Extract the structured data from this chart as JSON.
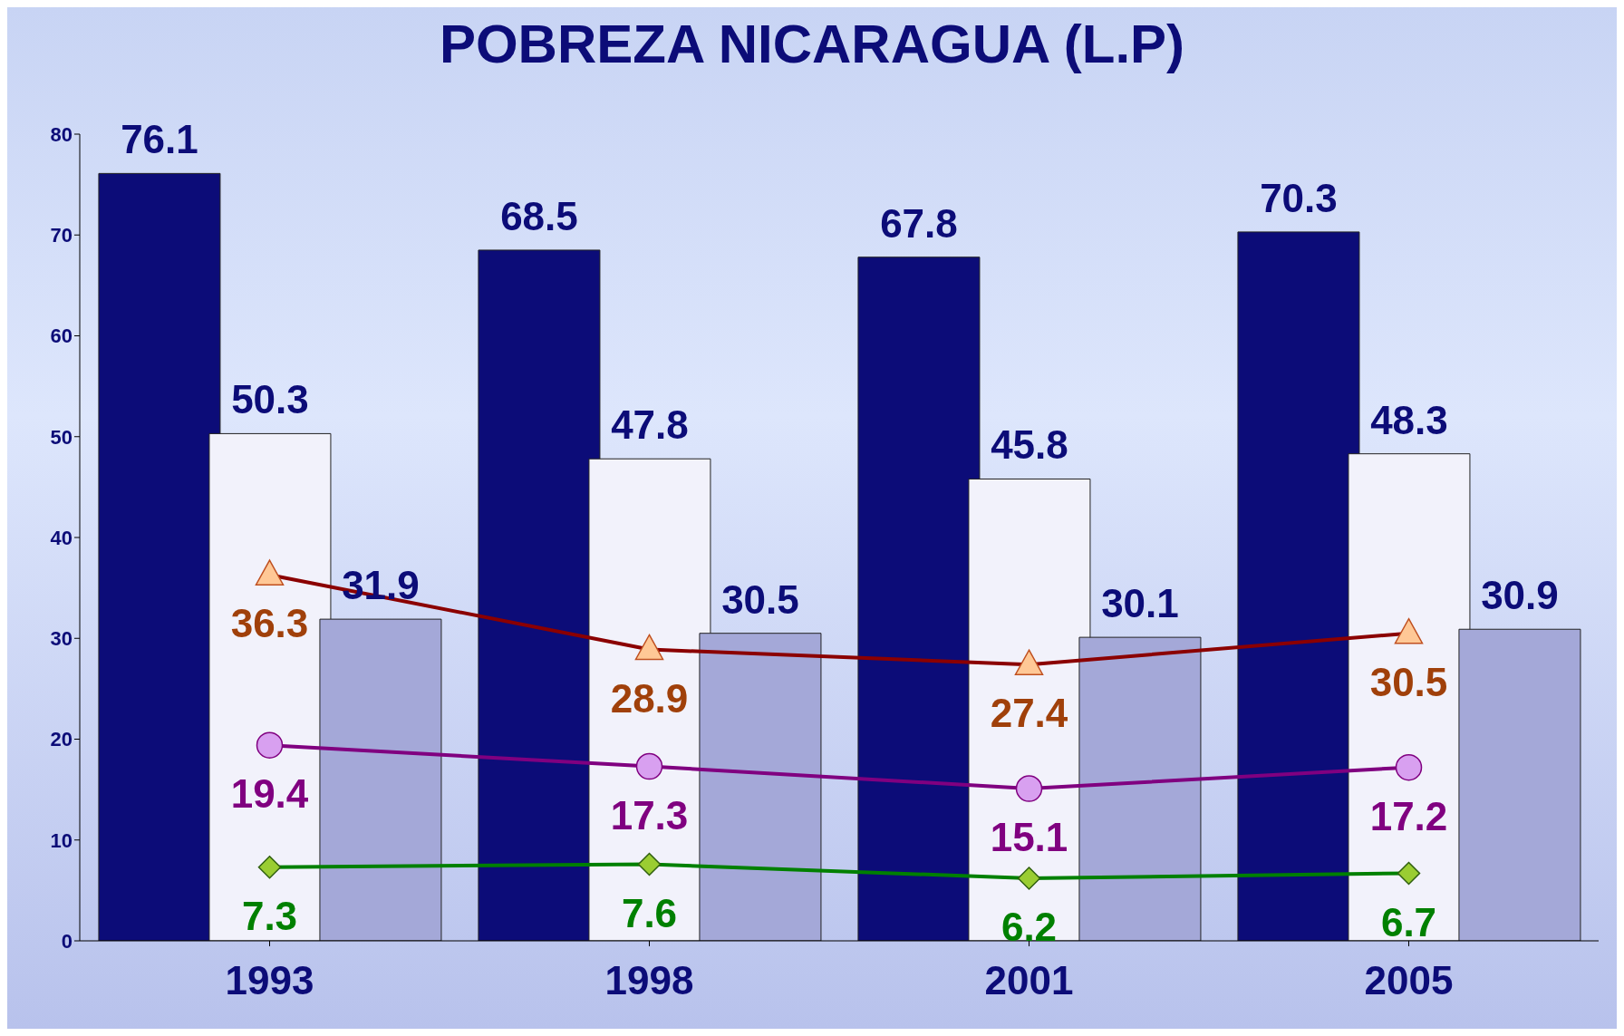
{
  "chart_data": {
    "type": "bar",
    "title": "POBREZA NICARAGUA (L.P)",
    "categories": [
      "1993",
      "1998",
      "2001",
      "2005"
    ],
    "series": [
      {
        "color": "#0c0c78",
        "values": [
          76.1,
          68.5,
          67.8,
          70.3
        ]
      },
      {
        "color": "#f2f2fb",
        "values": [
          50.3,
          47.8,
          45.8,
          48.3
        ]
      },
      {
        "color": "#a4a8d8",
        "values": [
          31.9,
          30.5,
          30.1,
          30.9
        ]
      },
      {
        "type": "line",
        "color": "#8b0000",
        "marker": "triangle",
        "values": [
          36.3,
          28.9,
          27.4,
          30.5
        ]
      },
      {
        "type": "line",
        "color": "#800080",
        "marker": "circle",
        "values": [
          19.4,
          17.3,
          15.1,
          17.2
        ]
      },
      {
        "type": "line",
        "color": "#008000",
        "marker": "diamond",
        "values": [
          7.3,
          7.6,
          6.2,
          6.7
        ]
      }
    ],
    "ylim": [
      0,
      80
    ],
    "yticks": [
      0,
      10,
      20,
      30,
      40,
      50,
      60,
      70,
      80
    ],
    "data_labels": true
  }
}
